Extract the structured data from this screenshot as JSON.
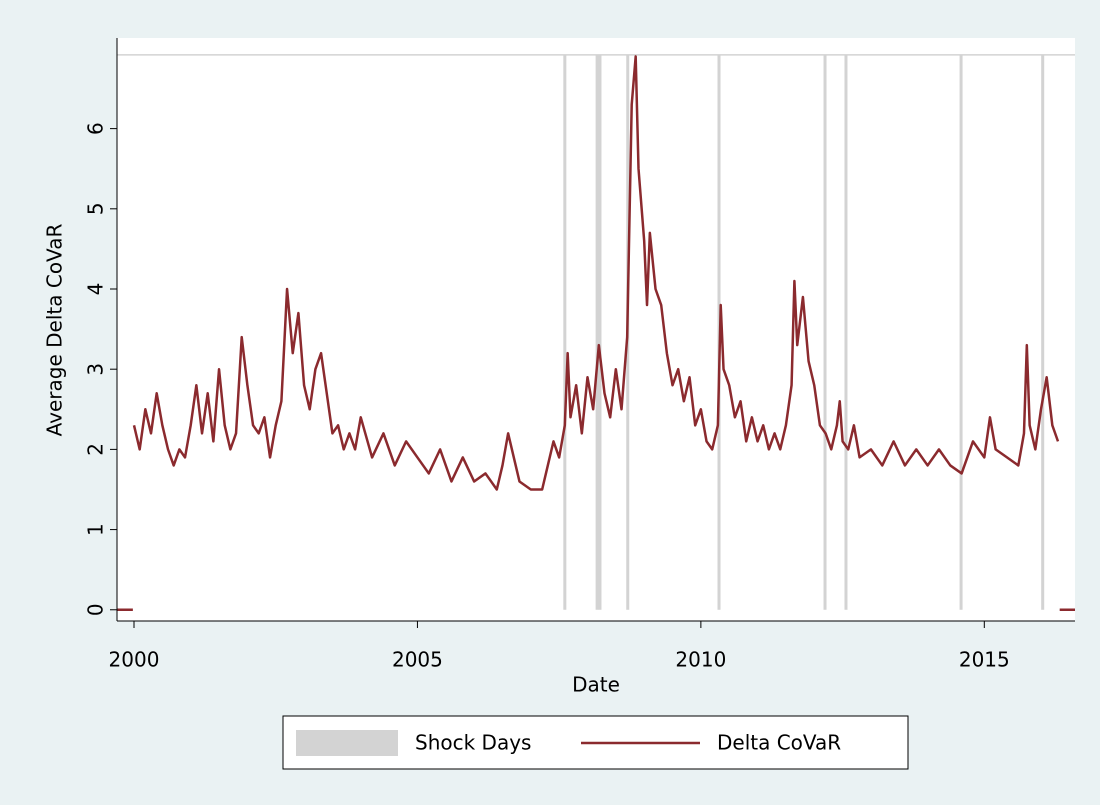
{
  "chart_data": {
    "type": "line",
    "x_label": "Date",
    "y_label": "Average Delta CoVaR",
    "xlim": [
      1999.7,
      2016.6
    ],
    "ylim": [
      -0.14,
      7.13
    ],
    "xticks": [
      2000,
      2005,
      2010,
      2015
    ],
    "yticks": [
      0,
      1,
      2,
      3,
      4,
      5,
      6
    ],
    "legend": "bottom",
    "series": [
      {
        "name": "Shock Days",
        "type": "bar",
        "color": "#d3d3d3",
        "x": [
          2007.6,
          2008.17,
          2008.22,
          2008.71,
          2010.32,
          2012.19,
          2012.56,
          2014.59,
          2016.03
        ],
        "values": [
          6.92,
          6.92,
          6.92,
          6.92,
          6.92,
          6.92,
          6.92,
          6.92,
          6.92
        ]
      },
      {
        "name": "Delta CoVaR",
        "type": "line",
        "color": "#8b2a2e",
        "x": [
          1999.7,
          1999.98,
          1999.99,
          2000.0,
          2000.1,
          2000.2,
          2000.3,
          2000.4,
          2000.5,
          2000.6,
          2000.7,
          2000.8,
          2000.9,
          2001.0,
          2001.1,
          2001.2,
          2001.3,
          2001.4,
          2001.5,
          2001.6,
          2001.7,
          2001.8,
          2001.9,
          2002.0,
          2002.1,
          2002.2,
          2002.3,
          2002.4,
          2002.5,
          2002.6,
          2002.7,
          2002.8,
          2002.9,
          2003.0,
          2003.1,
          2003.2,
          2003.3,
          2003.4,
          2003.5,
          2003.6,
          2003.7,
          2003.8,
          2003.9,
          2004.0,
          2004.2,
          2004.4,
          2004.6,
          2004.8,
          2005.0,
          2005.2,
          2005.4,
          2005.6,
          2005.8,
          2006.0,
          2006.2,
          2006.4,
          2006.5,
          2006.6,
          2006.7,
          2006.8,
          2007.0,
          2007.2,
          2007.3,
          2007.4,
          2007.5,
          2007.6,
          2007.65,
          2007.7,
          2007.8,
          2007.9,
          2008.0,
          2008.1,
          2008.2,
          2008.3,
          2008.4,
          2008.5,
          2008.6,
          2008.7,
          2008.78,
          2008.85,
          2008.9,
          2009.0,
          2009.05,
          2009.1,
          2009.2,
          2009.3,
          2009.4,
          2009.5,
          2009.6,
          2009.7,
          2009.8,
          2009.9,
          2010.0,
          2010.1,
          2010.2,
          2010.3,
          2010.35,
          2010.4,
          2010.5,
          2010.6,
          2010.7,
          2010.8,
          2010.9,
          2011.0,
          2011.1,
          2011.2,
          2011.3,
          2011.4,
          2011.5,
          2011.6,
          2011.65,
          2011.7,
          2011.8,
          2011.9,
          2012.0,
          2012.1,
          2012.2,
          2012.3,
          2012.4,
          2012.45,
          2012.5,
          2012.6,
          2012.7,
          2012.8,
          2013.0,
          2013.2,
          2013.4,
          2013.6,
          2013.8,
          2014.0,
          2014.2,
          2014.4,
          2014.6,
          2014.7,
          2014.8,
          2015.0,
          2015.1,
          2015.2,
          2015.4,
          2015.6,
          2015.7,
          2015.75,
          2015.8,
          2015.9,
          2016.0,
          2016.1,
          2016.2,
          2016.3,
          2016.32,
          2016.33,
          2016.6
        ],
        "values": [
          0,
          0,
          null,
          2.3,
          2.0,
          2.5,
          2.2,
          2.7,
          2.3,
          2.0,
          1.8,
          2.0,
          1.9,
          2.3,
          2.8,
          2.2,
          2.7,
          2.1,
          3.0,
          2.3,
          2.0,
          2.2,
          3.4,
          2.8,
          2.3,
          2.2,
          2.4,
          1.9,
          2.3,
          2.6,
          4.0,
          3.2,
          3.7,
          2.8,
          2.5,
          3.0,
          3.2,
          2.7,
          2.2,
          2.3,
          2.0,
          2.2,
          2.0,
          2.4,
          1.9,
          2.2,
          1.8,
          2.1,
          1.9,
          1.7,
          2.0,
          1.6,
          1.9,
          1.6,
          1.7,
          1.5,
          1.8,
          2.2,
          1.9,
          1.6,
          1.5,
          1.5,
          1.8,
          2.1,
          1.9,
          2.3,
          3.2,
          2.4,
          2.8,
          2.2,
          2.9,
          2.5,
          3.3,
          2.7,
          2.4,
          3.0,
          2.5,
          3.4,
          6.3,
          6.9,
          5.5,
          4.6,
          3.8,
          4.7,
          4.0,
          3.8,
          3.2,
          2.8,
          3.0,
          2.6,
          2.9,
          2.3,
          2.5,
          2.1,
          2.0,
          2.3,
          3.8,
          3.0,
          2.8,
          2.4,
          2.6,
          2.1,
          2.4,
          2.1,
          2.3,
          2.0,
          2.2,
          2.0,
          2.3,
          2.8,
          4.1,
          3.3,
          3.9,
          3.1,
          2.8,
          2.3,
          2.2,
          2.0,
          2.3,
          2.6,
          2.1,
          2.0,
          2.3,
          1.9,
          2.0,
          1.8,
          2.1,
          1.8,
          2.0,
          1.8,
          2.0,
          1.8,
          1.7,
          1.9,
          2.1,
          1.9,
          2.4,
          2.0,
          1.9,
          1.8,
          2.2,
          3.3,
          2.3,
          2.0,
          2.5,
          2.9,
          2.3,
          2.1,
          null,
          0,
          0
        ]
      }
    ]
  }
}
